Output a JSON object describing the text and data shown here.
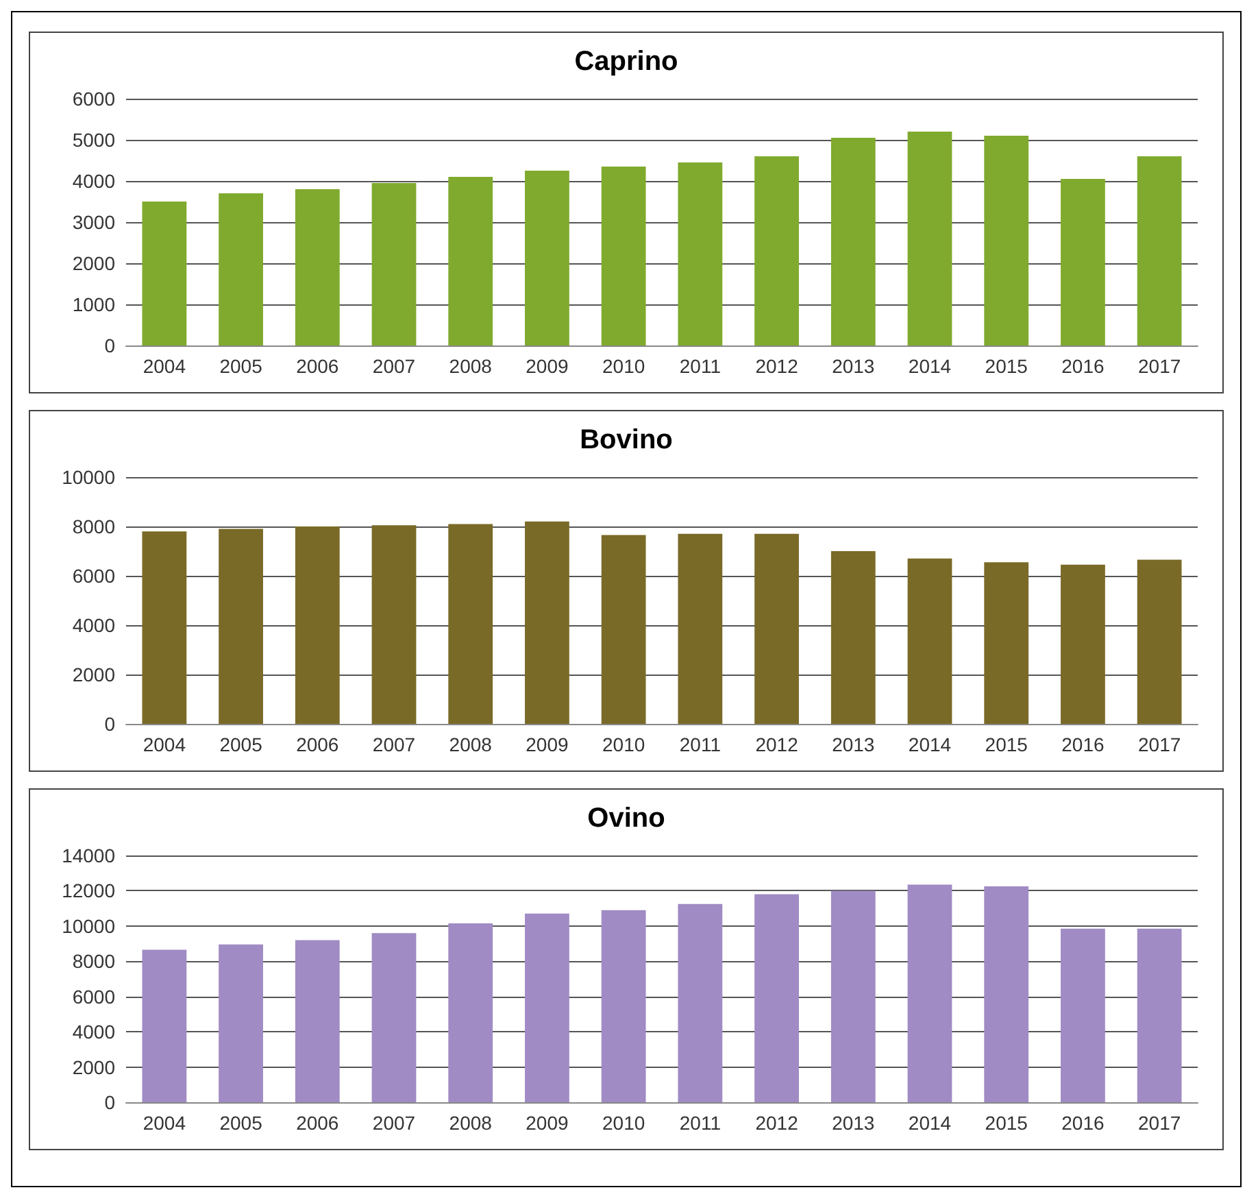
{
  "chart_data": [
    {
      "type": "bar",
      "title": "Caprino",
      "categories": [
        "2004",
        "2005",
        "2006",
        "2007",
        "2008",
        "2009",
        "2010",
        "2011",
        "2012",
        "2013",
        "2014",
        "2015",
        "2016",
        "2017"
      ],
      "values": [
        3500,
        3700,
        3800,
        3950,
        4100,
        4250,
        4350,
        4450,
        4600,
        5050,
        5200,
        5100,
        4050,
        4600
      ],
      "color": "#80aa2e",
      "ylim": [
        0,
        6000
      ],
      "yticks": [
        0,
        1000,
        2000,
        3000,
        4000,
        5000,
        6000
      ],
      "grid": "y"
    },
    {
      "type": "bar",
      "title": "Bovino",
      "categories": [
        "2004",
        "2005",
        "2006",
        "2007",
        "2008",
        "2009",
        "2010",
        "2011",
        "2012",
        "2013",
        "2014",
        "2015",
        "2016",
        "2017"
      ],
      "values": [
        7800,
        7900,
        8000,
        8050,
        8100,
        8200,
        7650,
        7700,
        7700,
        7000,
        6700,
        6550,
        6450,
        6650
      ],
      "color": "#7a6a28",
      "ylim": [
        0,
        10000
      ],
      "yticks": [
        0,
        2000,
        4000,
        6000,
        8000,
        10000
      ],
      "grid": "y"
    },
    {
      "type": "bar",
      "title": "Ovino",
      "categories": [
        "2004",
        "2005",
        "2006",
        "2007",
        "2008",
        "2009",
        "2010",
        "2011",
        "2012",
        "2013",
        "2014",
        "2015",
        "2016",
        "2017"
      ],
      "values": [
        8650,
        8950,
        9200,
        9600,
        10150,
        10700,
        10900,
        11250,
        11800,
        12000,
        12350,
        12250,
        9850,
        9850
      ],
      "color": "#a08bc4",
      "ylim": [
        0,
        14000
      ],
      "yticks": [
        0,
        2000,
        4000,
        6000,
        8000,
        10000,
        12000,
        14000
      ],
      "grid": "y"
    }
  ]
}
